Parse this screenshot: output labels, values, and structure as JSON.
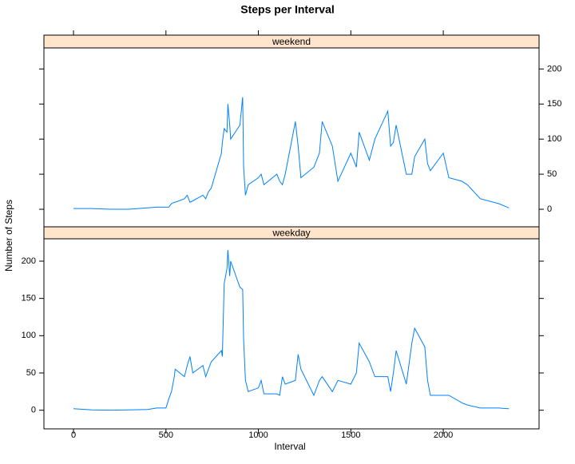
{
  "chart_data": {
    "type": "line",
    "title": "Steps per Interval",
    "xlabel": "Interval",
    "ylabel": "Number of Steps",
    "x": [
      0,
      100,
      200,
      300,
      400,
      450,
      500,
      515,
      530,
      545,
      550,
      600,
      615,
      630,
      645,
      700,
      715,
      730,
      745,
      800,
      805,
      815,
      830,
      835,
      845,
      850,
      900,
      915,
      920,
      930,
      945,
      1000,
      1015,
      1030,
      1100,
      1115,
      1130,
      1145,
      1200,
      1215,
      1230,
      1300,
      1330,
      1345,
      1400,
      1430,
      1500,
      1530,
      1545,
      1600,
      1630,
      1700,
      1715,
      1730,
      1745,
      1800,
      1830,
      1845,
      1900,
      1915,
      1930,
      2000,
      2030,
      2100,
      2130,
      2200,
      2300,
      2355
    ],
    "series": [
      {
        "name": "weekend",
        "color": "#0080ff",
        "values": [
          1,
          1,
          0,
          0,
          2,
          3,
          3,
          3,
          8,
          10,
          10,
          15,
          20,
          10,
          12,
          20,
          15,
          25,
          30,
          80,
          95,
          115,
          110,
          150,
          120,
          100,
          120,
          160,
          60,
          20,
          35,
          45,
          50,
          35,
          50,
          40,
          35,
          50,
          125,
          90,
          45,
          60,
          80,
          125,
          90,
          40,
          80,
          60,
          110,
          70,
          100,
          140,
          90,
          95,
          120,
          50,
          50,
          75,
          100,
          65,
          55,
          80,
          45,
          40,
          35,
          15,
          8,
          2
        ]
      },
      {
        "name": "weekday",
        "color": "#0080ff",
        "values": [
          2,
          0.5,
          0,
          0.5,
          1,
          3,
          3,
          15,
          25,
          45,
          55,
          45,
          60,
          72,
          50,
          60,
          45,
          55,
          65,
          80,
          72,
          170,
          190,
          215,
          180,
          200,
          165,
          162,
          95,
          40,
          25,
          30,
          40,
          22,
          22,
          20,
          45,
          35,
          40,
          75,
          55,
          20,
          40,
          45,
          25,
          40,
          35,
          50,
          90,
          65,
          45,
          45,
          25,
          50,
          80,
          35,
          90,
          110,
          85,
          40,
          20,
          20,
          20,
          10,
          7,
          3,
          3,
          2
        ]
      }
    ],
    "xlim": [
      -160,
      2518
    ],
    "xticks": [
      0,
      500,
      1000,
      1500,
      2000
    ],
    "ylim": [
      -25,
      230
    ],
    "yticks": [
      0,
      50,
      100,
      150,
      200
    ]
  }
}
